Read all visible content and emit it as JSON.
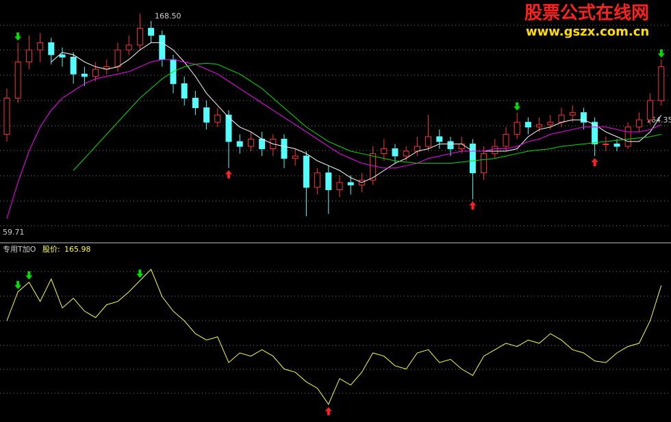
{
  "chart_data": [
    {
      "type": "candlestick",
      "ylim": [
        159.0,
        169.07
      ],
      "annotations": [
        "168.50",
        "59.71",
        "164.35"
      ],
      "open": [
        163.5,
        165.0,
        166.5,
        167.0,
        167.3,
        166.8,
        166.7,
        166.0,
        165.9,
        166.2,
        166.3,
        167.0,
        167.2,
        167.9,
        167.6,
        166.6,
        165.6,
        165.0,
        164.6,
        164.0,
        164.3,
        163.2,
        163.0,
        163.3,
        162.9,
        163.3,
        162.5,
        162.6,
        161.3,
        161.9,
        161.2,
        161.5,
        161.4,
        161.6,
        162.7,
        162.9,
        162.6,
        162.8,
        163.0,
        163.4,
        163.2,
        162.9,
        163.1,
        161.9,
        162.7,
        163.0,
        163.5,
        164.0,
        163.8,
        163.9,
        164.0,
        164.3,
        164.4,
        164.0,
        163.1,
        163.1,
        163.0,
        163.8,
        164.1,
        164.9
      ],
      "high": [
        165.4,
        167.3,
        167.6,
        167.7,
        167.5,
        167.1,
        166.9,
        166.3,
        166.5,
        166.6,
        167.3,
        167.6,
        168.5,
        168.2,
        167.8,
        166.8,
        165.9,
        165.3,
        164.9,
        164.6,
        164.5,
        163.5,
        163.6,
        163.6,
        163.5,
        163.5,
        162.9,
        162.8,
        162.1,
        162.2,
        161.8,
        161.8,
        161.9,
        163.0,
        163.3,
        163.1,
        163.0,
        163.4,
        164.3,
        163.7,
        163.4,
        163.4,
        163.3,
        163.0,
        163.3,
        163.8,
        164.4,
        164.2,
        164.2,
        164.3,
        164.6,
        164.7,
        164.6,
        164.2,
        163.4,
        163.3,
        164.0,
        164.4,
        165.2,
        166.6
      ],
      "low": [
        163.2,
        164.8,
        166.2,
        166.5,
        166.4,
        166.3,
        165.6,
        165.5,
        165.7,
        166.0,
        166.1,
        166.8,
        167.0,
        167.3,
        166.3,
        165.2,
        164.7,
        164.3,
        163.7,
        163.8,
        162.1,
        162.7,
        162.8,
        162.6,
        162.6,
        162.1,
        162.2,
        160.1,
        161.0,
        160.2,
        160.9,
        161.0,
        161.1,
        161.4,
        162.4,
        162.3,
        162.4,
        162.6,
        162.8,
        162.9,
        162.6,
        162.7,
        160.8,
        161.6,
        162.5,
        162.8,
        163.3,
        163.5,
        163.6,
        163.7,
        163.8,
        164.0,
        163.7,
        162.6,
        162.8,
        162.8,
        162.9,
        163.6,
        163.9,
        164.7
      ],
      "close": [
        165.0,
        166.5,
        167.0,
        167.3,
        166.8,
        166.7,
        166.0,
        165.9,
        166.2,
        166.3,
        167.0,
        167.2,
        167.9,
        167.6,
        166.6,
        165.6,
        165.0,
        164.6,
        164.0,
        164.3,
        163.2,
        163.0,
        163.3,
        162.9,
        163.3,
        162.5,
        162.6,
        161.3,
        161.9,
        161.2,
        161.5,
        161.4,
        161.6,
        162.7,
        162.9,
        162.6,
        162.8,
        163.0,
        163.4,
        163.2,
        162.9,
        163.1,
        161.9,
        162.7,
        163.0,
        163.5,
        164.0,
        163.8,
        163.9,
        164.0,
        164.3,
        164.4,
        164.0,
        163.1,
        163.1,
        163.0,
        163.8,
        164.1,
        164.9,
        166.3
      ],
      "up_color": "#ff3232",
      "down_color": "#54fcfc",
      "series": [
        {
          "color": "#ffffff",
          "values": [
            null,
            null,
            null,
            null,
            166.5,
            166.9,
            166.8,
            166.5,
            166.3,
            166.2,
            166.3,
            166.6,
            167.0,
            167.3,
            167.3,
            167.0,
            166.5,
            165.9,
            165.2,
            164.7,
            164.2,
            163.8,
            163.6,
            163.3,
            163.1,
            163.0,
            162.9,
            162.7,
            162.4,
            162.2,
            162.0,
            161.7,
            161.5,
            161.7,
            162.0,
            162.3,
            162.5,
            162.8,
            162.9,
            163.1,
            163.1,
            163.1,
            162.8,
            162.8,
            162.8,
            162.8,
            162.9,
            163.4,
            163.7,
            163.8,
            164.0,
            164.1,
            164.1,
            163.9,
            163.6,
            163.4,
            163.2,
            163.2,
            163.6,
            164.3
          ]
        },
        {
          "color": "#ff00ff",
          "values": [
            160.0,
            161.5,
            162.8,
            163.8,
            164.5,
            165.0,
            165.3,
            165.6,
            165.8,
            165.9,
            166.0,
            166.1,
            166.3,
            166.5,
            166.6,
            166.6,
            166.5,
            166.4,
            166.2,
            166.0,
            165.7,
            165.4,
            165.1,
            164.8,
            164.5,
            164.2,
            163.9,
            163.6,
            163.3,
            163.0,
            162.7,
            162.5,
            162.3,
            162.2,
            162.1,
            162.1,
            162.2,
            162.3,
            162.5,
            162.6,
            162.7,
            162.8,
            162.8,
            162.8,
            162.9,
            162.9,
            163.0,
            163.2,
            163.3,
            163.5,
            163.6,
            163.7,
            163.8,
            163.8,
            163.8,
            163.7,
            163.6,
            163.6,
            163.7,
            163.9
          ]
        },
        {
          "color": "#00e000",
          "values": [
            null,
            null,
            null,
            null,
            null,
            null,
            162.0,
            162.5,
            163.0,
            163.5,
            164.0,
            164.5,
            165.0,
            165.4,
            165.8,
            166.1,
            166.3,
            166.4,
            166.45,
            166.4,
            166.2,
            166.0,
            165.7,
            165.4,
            165.0,
            164.6,
            164.2,
            163.8,
            163.5,
            163.2,
            163.0,
            162.8,
            162.7,
            162.6,
            162.5,
            162.4,
            162.35,
            162.3,
            162.3,
            162.3,
            162.3,
            162.35,
            162.4,
            162.45,
            162.5,
            162.6,
            162.7,
            162.8,
            162.85,
            162.9,
            163.0,
            163.05,
            163.1,
            163.15,
            163.2,
            163.25,
            163.3,
            163.35,
            163.4,
            163.5
          ]
        }
      ],
      "sell_signals": [
        1,
        46,
        59
      ],
      "buy_signals": [
        20,
        42,
        53
      ]
    },
    {
      "type": "line",
      "title": "专用T加O",
      "price_label": "股价:",
      "price": "165.98",
      "ylim": [
        0,
        100
      ],
      "color": "#ffff40",
      "values": [
        60,
        78,
        84,
        72,
        86,
        68,
        74,
        66,
        62,
        70,
        72,
        78,
        85,
        92,
        75,
        66,
        60,
        52,
        48,
        50,
        34,
        40,
        38,
        42,
        38,
        30,
        28,
        22,
        18,
        8,
        24,
        20,
        28,
        40,
        38,
        32,
        30,
        40,
        42,
        34,
        36,
        30,
        26,
        38,
        42,
        46,
        44,
        48,
        46,
        52,
        48,
        42,
        40,
        35,
        34,
        40,
        44,
        46,
        60,
        82
      ],
      "sell_signals": [
        1,
        2,
        12
      ],
      "buy_signals": [
        29
      ]
    }
  ],
  "watermark": {
    "title": "股票公式在线网",
    "url": "www.gszx.com.cn"
  }
}
